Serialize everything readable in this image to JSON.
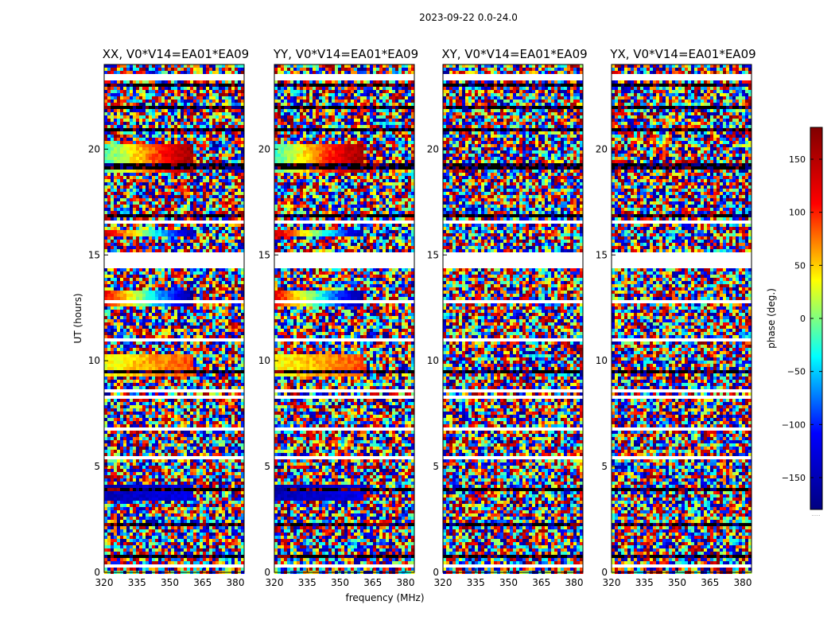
{
  "suptitle": "2023-09-22 0.0-24.0",
  "ylabel": "UT (hours)",
  "xlabel": "frequency (MHz)",
  "colorbar": {
    "label": "phase (deg.)",
    "ticks": [
      "150",
      "100",
      "50",
      "0",
      "−50",
      "−100",
      "−150"
    ],
    "tick_values": [
      150,
      100,
      50,
      0,
      -50,
      -100,
      -150
    ],
    "range": [
      -180,
      180
    ],
    "colormap": [
      "#000080",
      "#0000ff",
      "#00ffff",
      "#ffff00",
      "#ff0000",
      "#800000"
    ],
    "footer": "....."
  },
  "chart_data": {
    "type": "heatmap",
    "quantity": "phase (deg.)",
    "x_range": [
      320,
      384
    ],
    "y_range": [
      0,
      24
    ],
    "x_ticks": [
      "320",
      "335",
      "350",
      "365",
      "380"
    ],
    "x_tick_values": [
      320,
      335,
      350,
      365,
      380
    ],
    "y_ticks": [
      "0",
      "5",
      "10",
      "15",
      "20"
    ],
    "y_tick_values": [
      0,
      5,
      10,
      15,
      20
    ],
    "panels": [
      {
        "title": "XX, V0*V14=EA01*EA09",
        "coherent": true
      },
      {
        "title": "YY, V0*V14=EA01*EA09",
        "coherent": true
      },
      {
        "title": "XY, V0*V14=EA01*EA09",
        "coherent": false
      },
      {
        "title": "YX, V0*V14=EA01*EA09",
        "coherent": false
      }
    ],
    "flagged_hours": [
      [
        14.5,
        15.0
      ],
      [
        23.2,
        23.5
      ]
    ],
    "coherent_bands": [
      {
        "t0": 18.9,
        "t1": 20.3,
        "f_end": 361,
        "phase_start": -20,
        "phase_end": 170
      },
      {
        "t0": 9.2,
        "t1": 10.3,
        "f_end": 361,
        "phase_start": 30,
        "phase_end": 90
      },
      {
        "t0": 12.6,
        "t1": 13.3,
        "f_end": 361,
        "phase_start": 120,
        "phase_end": -170
      },
      {
        "t0": 15.8,
        "t1": 16.2,
        "f_end": 361,
        "phase_start": 140,
        "phase_end": -160
      },
      {
        "t0": 3.4,
        "t1": 4.1,
        "f_end": 361,
        "phase_start": -150,
        "phase_end": -120
      }
    ]
  }
}
